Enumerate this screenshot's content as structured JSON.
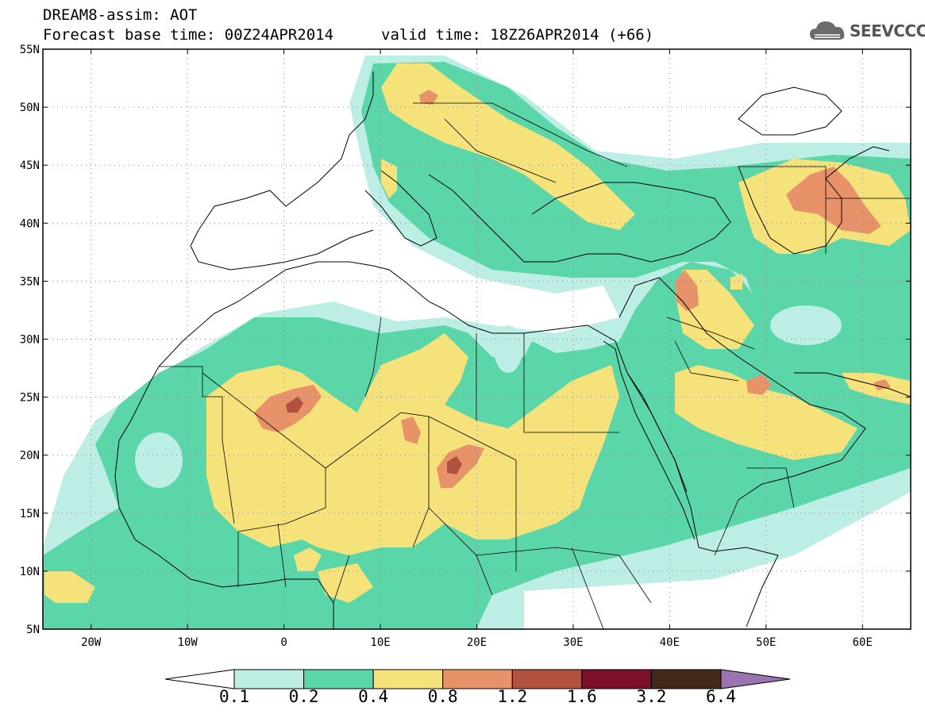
{
  "header": {
    "title": "DREAM8-assim: AOT",
    "base_time": "Forecast base time: 00Z24APR2014",
    "valid_time": "valid time: 18Z26APR2014 (+66)"
  },
  "logo": {
    "text": "SEEVCCC",
    "icon": "cloud-icon"
  },
  "map": {
    "lat_ticks": [
      "55N",
      "50N",
      "45N",
      "40N",
      "35N",
      "30N",
      "25N",
      "20N",
      "15N",
      "10N",
      "5N"
    ],
    "lon_ticks": [
      "20W",
      "10W",
      "0",
      "10E",
      "20E",
      "30E",
      "40E",
      "50E",
      "60E"
    ]
  },
  "colorbar": {
    "labels": [
      "0.1",
      "0.2",
      "0.4",
      "0.8",
      "1.2",
      "1.6",
      "3.2",
      "6.4"
    ],
    "colors": [
      "#ffffff",
      "#bdeee6",
      "#5bd6a9",
      "#f5e27a",
      "#e8926a",
      "#b0523e",
      "#7c0f2a",
      "#43291a",
      "#9a74b0"
    ]
  },
  "levels_colors": {
    "l1": "#bdeee6",
    "l2": "#5bd6a9",
    "l3": "#f5e27a",
    "l4": "#e8926a",
    "l5": "#b0523e",
    "l6": "#7c0f2a"
  }
}
